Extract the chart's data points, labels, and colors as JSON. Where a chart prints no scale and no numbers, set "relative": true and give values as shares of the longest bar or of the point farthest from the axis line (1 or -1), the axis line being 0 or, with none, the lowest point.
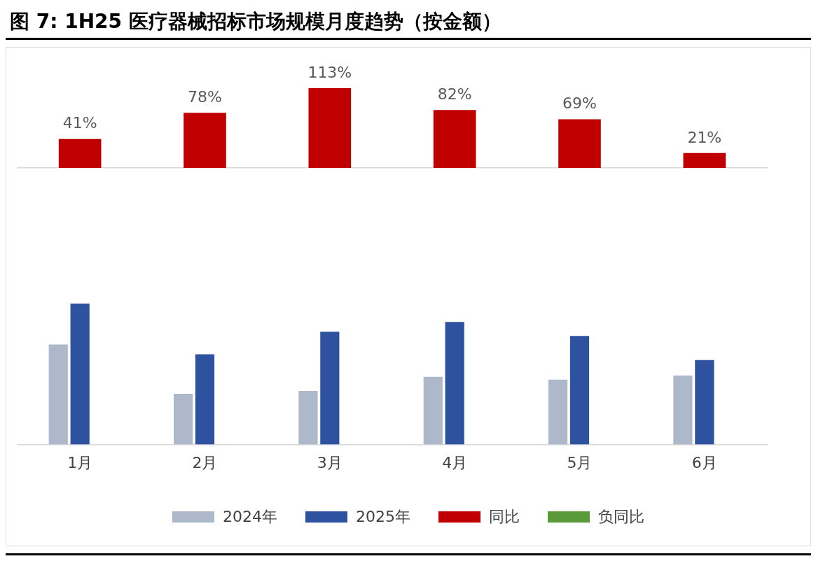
{
  "chart_data": [
    {
      "type": "bar",
      "title": "图 7: 1H25 医疗器械招标市场规模月度趋势（按金额）",
      "categories": [
        null,
        null,
        null,
        null,
        null,
        null
      ],
      "tick_labels": false,
      "legend": "bottom",
      "grid": false,
      "series": [
        {
          "name": "同比",
          "color": "#c00000",
          "values": [
            41,
            78,
            113,
            82,
            69,
            21
          ],
          "value_labels": [
            "41%",
            "78%",
            "113%",
            "82%",
            "69%",
            "21%"
          ]
        }
      ]
    },
    {
      "type": "bar",
      "categories": [
        "1月",
        "2月",
        "3月",
        "4月",
        "5月",
        "6月"
      ],
      "relative": true,
      "legend": "bottom",
      "grid": false,
      "series": [
        {
          "name": "2024年",
          "color": "#adb9ca",
          "values": [
            0.71,
            0.36,
            0.38,
            0.48,
            0.46,
            0.49
          ]
        },
        {
          "name": "2025年",
          "color": "#2f52a0",
          "values": [
            1,
            0.64,
            0.8,
            0.87,
            0.77,
            0.6
          ]
        },
        {
          "name": "负同比",
          "color": "#5b9a3a",
          "values": [
            null,
            null,
            null,
            null,
            null,
            null
          ]
        }
      ]
    }
  ]
}
